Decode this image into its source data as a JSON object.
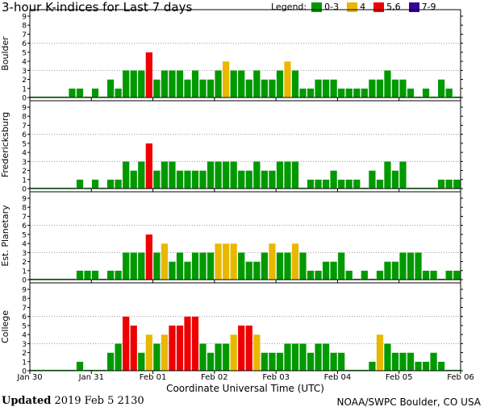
{
  "title": "3-hour K-indices for Last 7 days",
  "legend": {
    "label": "Legend:",
    "items": [
      {
        "label": "0-3",
        "color": "#009900"
      },
      {
        "label": "4",
        "color": "#e8b800"
      },
      {
        "label": "5,6",
        "color": "#ee0000"
      },
      {
        "label": "7-9",
        "color": "#330099"
      }
    ]
  },
  "footer": {
    "updated_label": "Updated",
    "updated_value": "2019 Feb  5 2130",
    "source": "NOAA/SWPC Boulder, CO USA"
  },
  "chart_data": {
    "type": "bar",
    "xlabel": "Coordinate Universal Time (UTC)",
    "x_ticks": [
      "Jan 30",
      "Jan 31",
      "Feb 01",
      "Feb 02",
      "Feb 03",
      "Feb 04",
      "Feb 05",
      "Feb 06"
    ],
    "ylim": [
      0,
      9
    ],
    "y_ticks": [
      "0",
      "1",
      "2",
      "3",
      "4",
      "5",
      "6",
      "7",
      "8",
      "9"
    ],
    "bins_per_day": 8,
    "color_scale": {
      "0-3": "#009900",
      "4": "#e8b800",
      "5,6": "#ee0000",
      "7-9": "#330099"
    },
    "panels": [
      {
        "name": "Boulder",
        "values": [
          0,
          0,
          0,
          0,
          0,
          1,
          1,
          0,
          1,
          0,
          2,
          1,
          3,
          3,
          3,
          5,
          2,
          3,
          3,
          3,
          2,
          3,
          2,
          2,
          3,
          4,
          3,
          3,
          2,
          3,
          2,
          2,
          3,
          4,
          3,
          1,
          1,
          2,
          2,
          2,
          1,
          1,
          1,
          1,
          2,
          2,
          3,
          2,
          2,
          1,
          0,
          1,
          0,
          2,
          1,
          0
        ]
      },
      {
        "name": "Fredericksburg",
        "values": [
          0,
          0,
          0,
          0,
          0,
          0,
          1,
          0,
          1,
          0,
          1,
          1,
          3,
          2,
          3,
          5,
          2,
          3,
          3,
          2,
          2,
          2,
          2,
          3,
          3,
          3,
          3,
          2,
          2,
          3,
          2,
          2,
          3,
          3,
          3,
          0,
          1,
          1,
          1,
          2,
          1,
          1,
          1,
          0,
          2,
          1,
          3,
          2,
          3,
          0,
          0,
          0,
          0,
          1,
          1,
          1
        ]
      },
      {
        "name": "Est. Planetary",
        "values": [
          0,
          0,
          0,
          0,
          0,
          0,
          1,
          1,
          1,
          0,
          1,
          1,
          3,
          3,
          3,
          5,
          3,
          4,
          2,
          3,
          2,
          3,
          3,
          3,
          4,
          4,
          4,
          3,
          2,
          2,
          3,
          4,
          3,
          3,
          4,
          3,
          1,
          1,
          2,
          2,
          3,
          1,
          0,
          1,
          0,
          1,
          2,
          2,
          3,
          3,
          3,
          1,
          1,
          0,
          1,
          1
        ]
      },
      {
        "name": "College",
        "values": [
          0,
          0,
          0,
          0,
          0,
          0,
          1,
          0,
          0,
          0,
          2,
          3,
          6,
          5,
          2,
          4,
          3,
          4,
          5,
          5,
          6,
          6,
          3,
          2,
          3,
          3,
          4,
          5,
          5,
          4,
          2,
          2,
          2,
          3,
          3,
          3,
          2,
          3,
          3,
          2,
          2,
          0,
          0,
          0,
          1,
          4,
          3,
          2,
          2,
          2,
          1,
          1,
          2,
          1,
          0,
          0
        ]
      }
    ]
  }
}
